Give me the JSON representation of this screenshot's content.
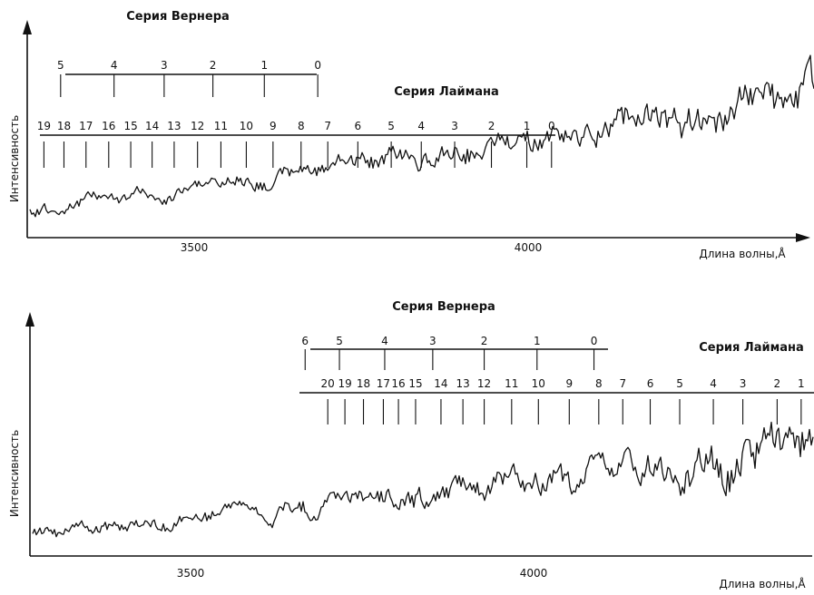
{
  "chart_data": [
    {
      "type": "line",
      "ylabel": "Интенсивность",
      "xlabel": "Длина волны,Å",
      "x_ticks": [
        3500,
        4000
      ],
      "xlim": [
        3230,
        4460
      ],
      "werner": {
        "title": "Серия Вернера",
        "bands": [
          {
            "label": "5",
            "x": 3300
          },
          {
            "label": "4",
            "x": 3380
          },
          {
            "label": "3",
            "x": 3455
          },
          {
            "label": "2",
            "x": 3528
          },
          {
            "label": "1",
            "x": 3605
          },
          {
            "label": "0",
            "x": 3685
          }
        ]
      },
      "lyman": {
        "title": "Серия Лаймана",
        "bands": [
          {
            "label": "19",
            "x": 3275
          },
          {
            "label": "18",
            "x": 3305
          },
          {
            "label": "17",
            "x": 3338
          },
          {
            "label": "16",
            "x": 3372
          },
          {
            "label": "15",
            "x": 3405
          },
          {
            "label": "14",
            "x": 3437
          },
          {
            "label": "13",
            "x": 3470
          },
          {
            "label": "12",
            "x": 3505
          },
          {
            "label": "11",
            "x": 3540
          },
          {
            "label": "10",
            "x": 3578
          },
          {
            "label": "9",
            "x": 3618
          },
          {
            "label": "8",
            "x": 3660
          },
          {
            "label": "7",
            "x": 3700
          },
          {
            "label": "6",
            "x": 3745
          },
          {
            "label": "5",
            "x": 3795
          },
          {
            "label": "4",
            "x": 3840
          },
          {
            "label": "3",
            "x": 3890
          },
          {
            "label": "2",
            "x": 3945
          },
          {
            "label": "1",
            "x": 3998
          },
          {
            "label": "0",
            "x": 4035
          }
        ]
      }
    },
    {
      "type": "line",
      "ylabel": "Интенсивность",
      "xlabel": "Длина волны,Å",
      "x_ticks": [
        3500,
        4000
      ],
      "xlim": [
        3230,
        4390
      ],
      "werner": {
        "title": "Серия Вернера",
        "bands": [
          {
            "label": "6",
            "x": 3667
          },
          {
            "label": "5",
            "x": 3717
          },
          {
            "label": "4",
            "x": 3783
          },
          {
            "label": "3",
            "x": 3853
          },
          {
            "label": "2",
            "x": 3928
          },
          {
            "label": "1",
            "x": 4005
          },
          {
            "label": "0",
            "x": 4088
          }
        ]
      },
      "lyman": {
        "title": "Серия Лаймана",
        "bands": [
          {
            "label": "20",
            "x": 3700
          },
          {
            "label": "19",
            "x": 3725
          },
          {
            "label": "18",
            "x": 3752
          },
          {
            "label": "17",
            "x": 3781
          },
          {
            "label": "16",
            "x": 3803
          },
          {
            "label": "15",
            "x": 3828
          },
          {
            "label": "14",
            "x": 3865
          },
          {
            "label": "13",
            "x": 3897
          },
          {
            "label": "12",
            "x": 3928
          },
          {
            "label": "11",
            "x": 3968
          },
          {
            "label": "10",
            "x": 4007
          },
          {
            "label": "9",
            "x": 4052
          },
          {
            "label": "8",
            "x": 4095
          },
          {
            "label": "7",
            "x": 4130
          },
          {
            "label": "6",
            "x": 4170
          },
          {
            "label": "5",
            "x": 4213
          },
          {
            "label": "4",
            "x": 4262
          },
          {
            "label": "3",
            "x": 4305
          },
          {
            "label": "2",
            "x": 4355
          },
          {
            "label": "1",
            "x": 4390
          }
        ]
      }
    }
  ]
}
